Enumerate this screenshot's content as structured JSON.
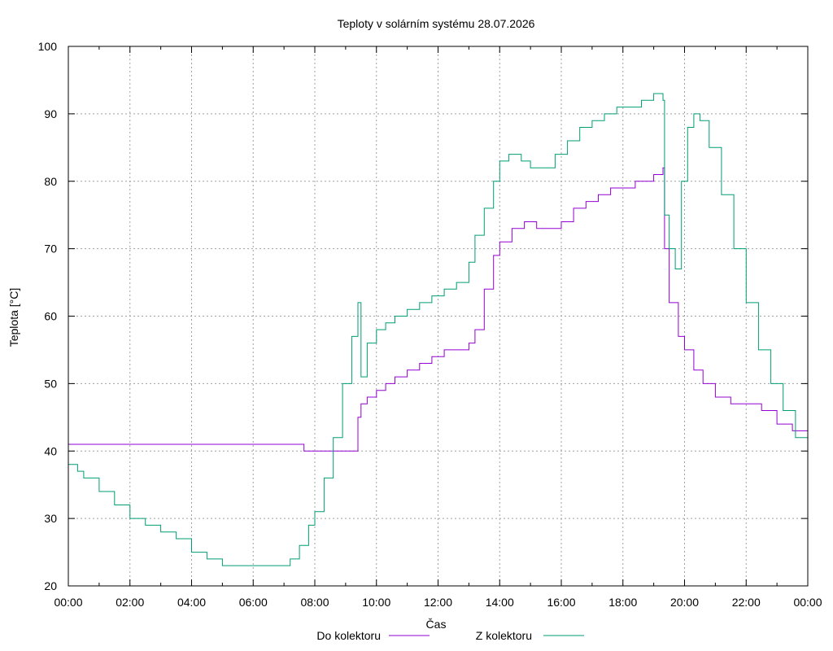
{
  "chart_data": {
    "type": "line",
    "title": "Teploty v solárním systému 28.07.2026",
    "xlabel": "Čas",
    "ylabel": "Teplota [°C]",
    "xlim": [
      0,
      24
    ],
    "ylim": [
      20,
      100
    ],
    "grid": true,
    "legend_position": "bottom",
    "x_tick_labels": [
      "00:00",
      "02:00",
      "04:00",
      "06:00",
      "08:00",
      "10:00",
      "12:00",
      "14:00",
      "16:00",
      "18:00",
      "20:00",
      "22:00",
      "00:00"
    ],
    "y_tick_labels": [
      "20",
      "30",
      "40",
      "50",
      "60",
      "70",
      "80",
      "90",
      "100"
    ],
    "series": [
      {
        "name": "Do kolektoru",
        "color": "#9400d3",
        "x": [
          0,
          7.6,
          7.65,
          8.0,
          9.2,
          9.4,
          9.5,
          9.7,
          10.0,
          10.3,
          10.6,
          11.0,
          11.4,
          11.8,
          12.2,
          12.6,
          13.0,
          13.2,
          13.5,
          13.8,
          14.0,
          14.4,
          14.8,
          15.2,
          15.6,
          16.0,
          16.4,
          16.8,
          17.2,
          17.6,
          18.0,
          18.4,
          18.7,
          19.0,
          19.3,
          19.35,
          19.5,
          19.8,
          20.0,
          20.3,
          20.6,
          21.0,
          21.5,
          22.0,
          22.5,
          23.0,
          23.5,
          24.0
        ],
        "y": [
          41,
          41,
          40,
          40,
          40,
          45,
          47,
          48,
          49,
          50,
          51,
          52,
          53,
          54,
          55,
          55,
          56,
          58,
          64,
          69,
          71,
          73,
          74,
          73,
          73,
          74,
          76,
          77,
          78,
          79,
          79,
          80,
          80,
          81,
          82,
          70,
          62,
          57,
          55,
          52,
          50,
          48,
          47,
          47,
          46,
          44,
          43,
          41
        ]
      },
      {
        "name": "Z kolektoru",
        "color": "#009e73",
        "x": [
          0,
          0.3,
          0.5,
          1.0,
          1.5,
          2.0,
          2.5,
          3.0,
          3.5,
          4.0,
          4.5,
          5.0,
          5.5,
          6.0,
          6.5,
          7.0,
          7.2,
          7.5,
          7.8,
          8.0,
          8.3,
          8.6,
          8.9,
          9.2,
          9.4,
          9.5,
          9.7,
          10.0,
          10.3,
          10.6,
          11.0,
          11.4,
          11.8,
          12.2,
          12.6,
          13.0,
          13.2,
          13.5,
          13.8,
          14.0,
          14.3,
          14.7,
          15.0,
          15.4,
          15.8,
          16.2,
          16.6,
          17.0,
          17.4,
          17.8,
          18.2,
          18.6,
          19.0,
          19.3,
          19.35,
          19.5,
          19.7,
          19.9,
          20.1,
          20.3,
          20.5,
          20.8,
          21.2,
          21.6,
          22.0,
          22.4,
          22.8,
          23.2,
          23.6,
          24.0
        ],
        "y": [
          38,
          37,
          36,
          34,
          32,
          30,
          29,
          28,
          27,
          25,
          24,
          23,
          23,
          23,
          23,
          23,
          24,
          26,
          29,
          31,
          36,
          42,
          50,
          57,
          62,
          51,
          56,
          58,
          59,
          60,
          61,
          62,
          63,
          64,
          65,
          68,
          72,
          76,
          80,
          83,
          84,
          83,
          82,
          82,
          84,
          86,
          88,
          89,
          90,
          91,
          91,
          92,
          93,
          92,
          75,
          70,
          67,
          80,
          88,
          90,
          89,
          85,
          78,
          70,
          62,
          55,
          50,
          46,
          42,
          39
        ]
      }
    ]
  }
}
